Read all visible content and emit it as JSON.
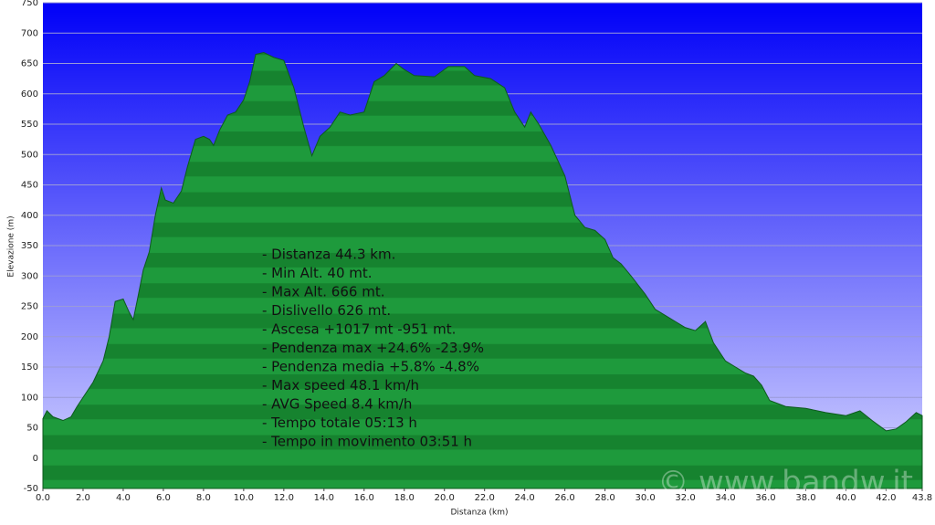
{
  "chart_data": {
    "type": "area",
    "x_label": "Distanza  (km)",
    "y_label": "Elevazione (m)",
    "annotations": [
      "- Distanza 44.3 km.",
      "- Min Alt. 40 mt.",
      "- Max Alt. 666 mt.",
      "- Dislivello 626 mt.",
      "- Ascesa +1017 mt -951 mt.",
      "- Pendenza max +24.6% -23.9%",
      "- Pendenza media +5.8% -4.8%",
      "- Max speed 48.1 km/h",
      "- AVG Speed 8.4 km/h",
      "- Tempo totale 05:13 h",
      "- Tempo in movimento 03:51 h"
    ],
    "watermark": "© www.bandw.it",
    "color": "#1e9a3c",
    "grid": true,
    "xlim": [
      0,
      43.8
    ],
    "ylim": [
      -50,
      750
    ],
    "xticks": [
      {
        "value": 0,
        "label": "0.0"
      },
      {
        "value": 2,
        "label": "2.0"
      },
      {
        "value": 4,
        "label": "4.0"
      },
      {
        "value": 6,
        "label": "6.0"
      },
      {
        "value": 8,
        "label": "8.0"
      },
      {
        "value": 10,
        "label": "10.0"
      },
      {
        "value": 12,
        "label": "12.0"
      },
      {
        "value": 14,
        "label": "14.0"
      },
      {
        "value": 16,
        "label": "16.0"
      },
      {
        "value": 18,
        "label": "18.0"
      },
      {
        "value": 20,
        "label": "20.0"
      },
      {
        "value": 22,
        "label": "22.0"
      },
      {
        "value": 24,
        "label": "24.0"
      },
      {
        "value": 26,
        "label": "26.0"
      },
      {
        "value": 28,
        "label": "28.0"
      },
      {
        "value": 30,
        "label": "30.0"
      },
      {
        "value": 32,
        "label": "32.0"
      },
      {
        "value": 34,
        "label": "34.0"
      },
      {
        "value": 36,
        "label": "36.0"
      },
      {
        "value": 38,
        "label": "38.0"
      },
      {
        "value": 40,
        "label": "40.0"
      },
      {
        "value": 42,
        "label": "42.0"
      },
      43.8
    ],
    "yticks": [
      -50,
      0,
      50,
      100,
      150,
      200,
      250,
      300,
      350,
      400,
      450,
      500,
      550,
      600,
      650,
      700,
      750
    ],
    "x": [
      0,
      0.2,
      0.5,
      1.0,
      1.4,
      1.7,
      2.0,
      2.5,
      3.0,
      3.3,
      3.6,
      4.0,
      4.3,
      4.5,
      4.7,
      5.0,
      5.3,
      5.6,
      5.9,
      6.1,
      6.5,
      6.9,
      7.2,
      7.6,
      8.0,
      8.3,
      8.5,
      8.8,
      9.2,
      9.6,
      10.0,
      10.3,
      10.6,
      11.0,
      11.5,
      12.0,
      12.5,
      13.0,
      13.4,
      13.8,
      14.3,
      14.8,
      15.3,
      16.0,
      16.5,
      17.0,
      17.6,
      18.0,
      18.5,
      19.5,
      20.2,
      21.0,
      21.5,
      22.3,
      23.0,
      23.5,
      24.0,
      24.3,
      24.7,
      25.3,
      26.0,
      26.5,
      27.0,
      27.5,
      28.0,
      28.4,
      28.8,
      29.3,
      30.0,
      30.5,
      31.0,
      31.5,
      32.0,
      32.5,
      33.0,
      33.4,
      34.0,
      34.5,
      35.0,
      35.4,
      35.8,
      36.2,
      37.0,
      38.0,
      39.0,
      40.0,
      40.7,
      41.3,
      42.0,
      42.5,
      43.0,
      43.5,
      43.8
    ],
    "values": [
      65,
      78,
      68,
      62,
      68,
      85,
      100,
      125,
      160,
      200,
      258,
      262,
      240,
      228,
      260,
      310,
      340,
      400,
      445,
      425,
      420,
      440,
      480,
      525,
      530,
      525,
      515,
      540,
      565,
      570,
      590,
      620,
      665,
      668,
      660,
      655,
      610,
      545,
      498,
      530,
      545,
      570,
      565,
      570,
      620,
      630,
      650,
      640,
      630,
      628,
      645,
      645,
      630,
      625,
      610,
      570,
      545,
      570,
      550,
      515,
      465,
      400,
      380,
      375,
      360,
      330,
      320,
      300,
      270,
      245,
      235,
      225,
      215,
      210,
      225,
      190,
      160,
      150,
      140,
      135,
      120,
      95,
      85,
      82,
      75,
      70,
      78,
      62,
      45,
      48,
      60,
      75,
      70
    ]
  }
}
